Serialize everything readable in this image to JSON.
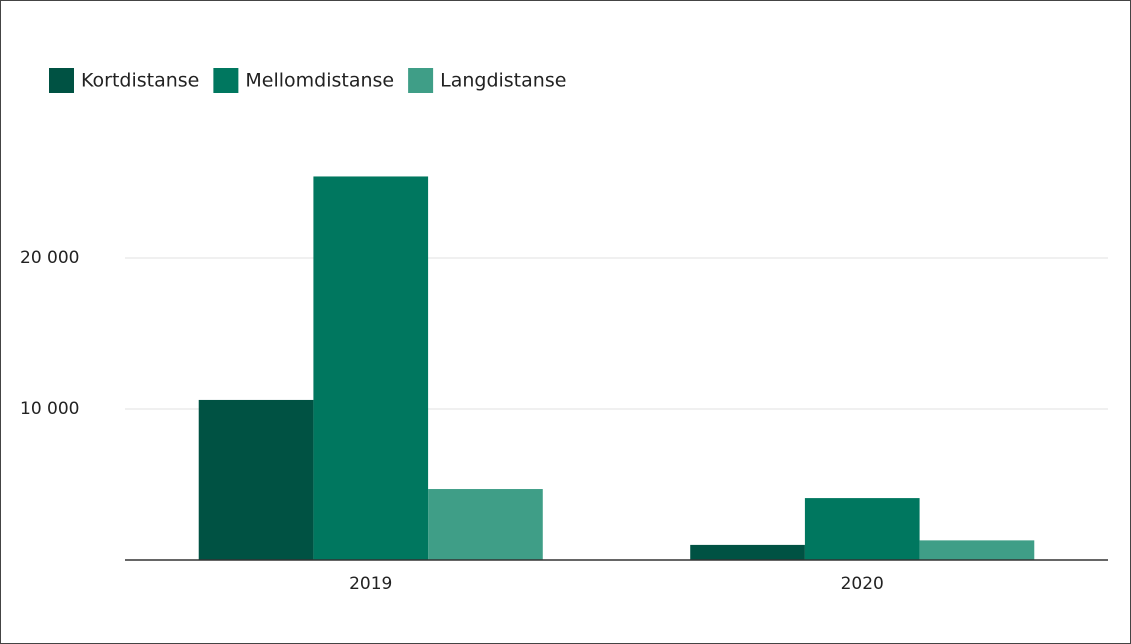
{
  "chart_data": {
    "type": "bar",
    "categories": [
      "2019",
      "2020"
    ],
    "series": [
      {
        "name": "Kortdistanse",
        "color": "#005243",
        "values": [
          10600,
          1000
        ]
      },
      {
        "name": "Mellomdistanse",
        "color": "#00775f",
        "values": [
          25400,
          4100
        ]
      },
      {
        "name": "Langdistanse",
        "color": "#3f9e87",
        "values": [
          4700,
          1300
        ]
      }
    ],
    "ylim": [
      0,
      30000
    ],
    "yticks": [
      {
        "value": 10000,
        "label": "10 000"
      },
      {
        "value": 20000,
        "label": "20 000"
      }
    ],
    "grid": true,
    "legend": "top-left"
  }
}
